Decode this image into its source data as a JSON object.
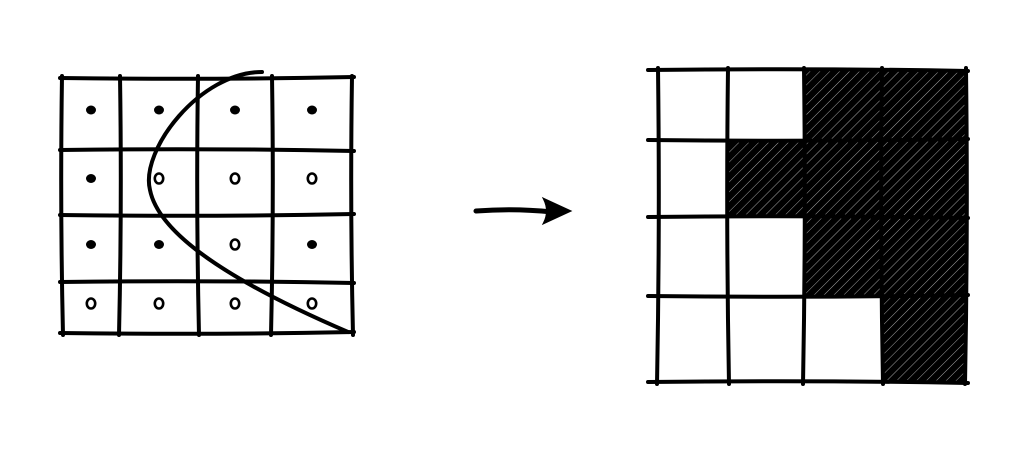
{
  "colors": {
    "ink": "#000000",
    "paper": "#ffffff"
  },
  "left_grid": {
    "rows": 4,
    "cols": 4,
    "dots": [
      [
        "filled",
        "filled",
        "filled",
        "filled"
      ],
      [
        "filled",
        "hollow",
        "hollow",
        "hollow"
      ],
      [
        "filled",
        "filled",
        "hollow",
        "filled"
      ],
      [
        "hollow",
        "hollow",
        "hollow",
        "hollow"
      ]
    ],
    "curve": "parabola"
  },
  "arrow": {
    "icon": "right-arrow-icon"
  },
  "right_grid": {
    "rows": 4,
    "cols": 4,
    "cells": [
      [
        0,
        0,
        1,
        1
      ],
      [
        0,
        1,
        1,
        1
      ],
      [
        0,
        0,
        1,
        1
      ],
      [
        0,
        0,
        0,
        1
      ]
    ],
    "fill_pattern": "hatched"
  }
}
